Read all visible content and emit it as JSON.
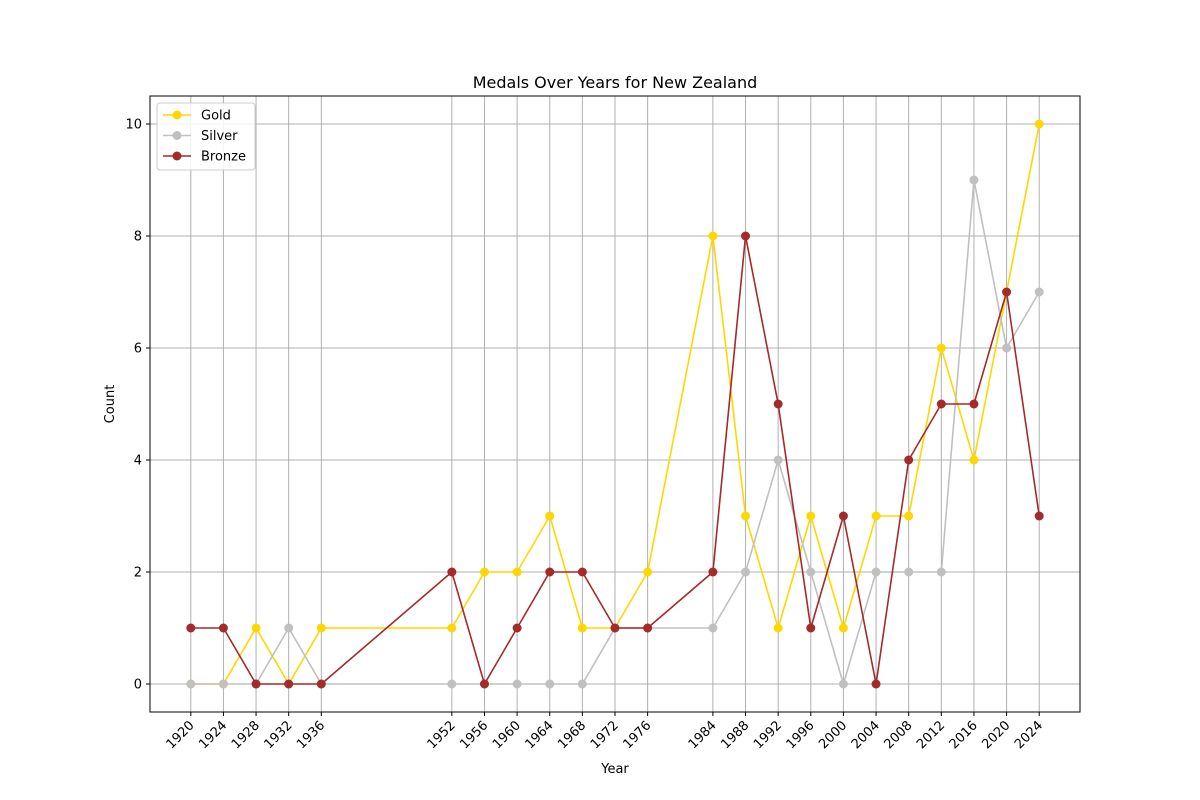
{
  "chart_data": {
    "type": "line",
    "title": "Medals Over Years for New Zealand",
    "xlabel": "Year",
    "ylabel": "Count",
    "x": [
      1920,
      1924,
      1928,
      1932,
      1936,
      1952,
      1956,
      1960,
      1964,
      1968,
      1972,
      1976,
      1984,
      1988,
      1992,
      1996,
      2000,
      2004,
      2008,
      2012,
      2016,
      2020,
      2024
    ],
    "x_tick_labels": [
      "1920",
      "1924",
      "1928",
      "1932",
      "1936",
      "1952",
      "1956",
      "1960",
      "1964",
      "1968",
      "1972",
      "1976",
      "1984",
      "1988",
      "1992",
      "1996",
      "2000",
      "2004",
      "2008",
      "2012",
      "2016",
      "2020",
      "2024"
    ],
    "xlim": [
      1915,
      2029
    ],
    "ylim": [
      -0.5,
      10.5
    ],
    "y_ticks": [
      0,
      2,
      4,
      6,
      8,
      10
    ],
    "y_tick_labels": [
      "0",
      "2",
      "4",
      "6",
      "8",
      "10"
    ],
    "grid": true,
    "legend_position": "top-left",
    "series": [
      {
        "name": "Gold",
        "color": "#FFD700",
        "values": [
          0,
          0,
          1,
          0,
          1,
          1,
          2,
          2,
          3,
          1,
          1,
          2,
          8,
          3,
          1,
          3,
          1,
          3,
          3,
          6,
          4,
          7,
          10
        ]
      },
      {
        "name": "Silver",
        "color": "#C0C0C0",
        "values": [
          0,
          0,
          0,
          1,
          0,
          0,
          0,
          0,
          0,
          0,
          1,
          1,
          1,
          2,
          4,
          2,
          0,
          2,
          2,
          2,
          9,
          6,
          7
        ]
      },
      {
        "name": "Bronze",
        "color": "#A52A2A",
        "values": [
          1,
          1,
          0,
          0,
          0,
          2,
          0,
          1,
          2,
          2,
          1,
          1,
          2,
          8,
          5,
          1,
          3,
          0,
          4,
          5,
          5,
          7,
          3
        ]
      }
    ]
  }
}
